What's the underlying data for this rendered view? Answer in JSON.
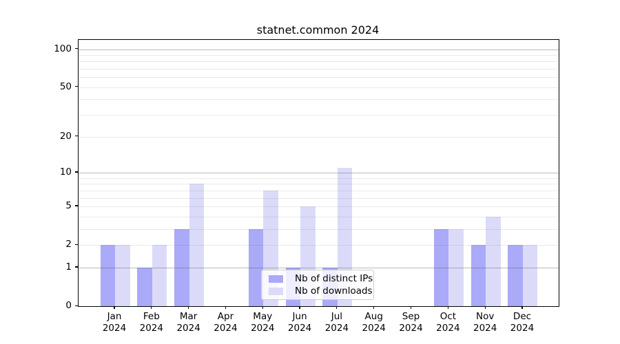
{
  "title": "statnet.common 2024",
  "colors": {
    "ips_bar": "#aaaaf8",
    "downloads_bar": "#dbdbf9",
    "grid_major": "rgba(80,80,80,0.40)",
    "grid_minor": "rgba(80,80,80,0.12)",
    "axis": "#000000",
    "legend_bg": "rgba(255,255,255,0.8)",
    "legend_border": "#cccccc"
  },
  "legend": {
    "items": [
      {
        "label": "Nb of distinct IPs",
        "color_key": "ips_bar"
      },
      {
        "label": "Nb of downloads",
        "color_key": "downloads_bar"
      }
    ]
  },
  "chart_data": {
    "type": "bar",
    "title": "statnet.common 2024",
    "categories": [
      "Jan",
      "Feb",
      "Mar",
      "Apr",
      "May",
      "Jun",
      "Jul",
      "Aug",
      "Sep",
      "Oct",
      "Nov",
      "Dec"
    ],
    "year_label": "2024",
    "series": [
      {
        "name": "Nb of distinct IPs",
        "color_key": "ips_bar",
        "values": [
          2,
          1,
          3,
          0,
          3,
          1,
          1,
          0,
          0,
          3,
          2,
          2
        ]
      },
      {
        "name": "Nb of downloads",
        "color_key": "downloads_bar",
        "values": [
          2,
          2,
          8,
          0,
          7,
          5,
          11,
          0,
          0,
          3,
          4,
          2
        ]
      }
    ],
    "y_axis": {
      "scale": "log1p",
      "ticks": [
        0,
        1,
        2,
        5,
        10,
        20,
        50,
        100
      ],
      "min": 0,
      "max": 100
    },
    "grid": {
      "major": [
        1,
        10,
        100
      ],
      "minor": [
        2,
        3,
        4,
        5,
        6,
        7,
        8,
        9,
        20,
        30,
        40,
        50,
        60,
        70,
        80,
        90
      ]
    },
    "legend_position": "lower center",
    "xlabel": "",
    "ylabel": ""
  }
}
